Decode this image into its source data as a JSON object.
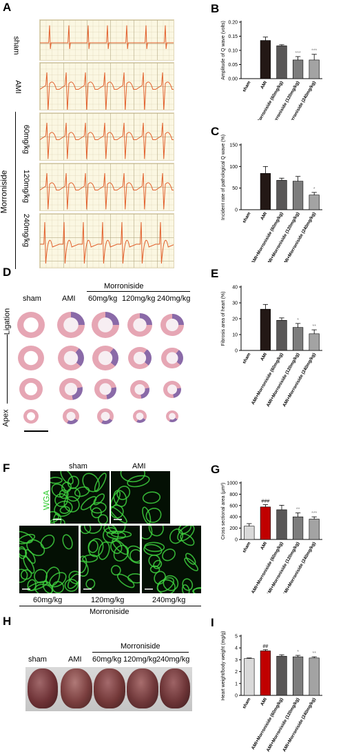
{
  "panels": {
    "A": {
      "letter": "A",
      "group_label": "Morroniside",
      "rows": [
        "sham",
        "AMI",
        "60mg/kg",
        "120mg/kg",
        "240mg/kg"
      ]
    },
    "D": {
      "letter": "D",
      "col_labels": [
        "sham",
        "AMI",
        "60mg/kg",
        "120mg/kg",
        "240mg/kg"
      ],
      "group_label": "Morroniside",
      "side_top": "Ligation",
      "side_bottom": "Apex"
    },
    "F": {
      "letter": "F",
      "top_labels": [
        "sham",
        "AMI"
      ],
      "stain": "WGA",
      "bottom_labels": [
        "60mg/kg",
        "120mg/kg",
        "240mg/kg"
      ],
      "group_label": "Morroniside"
    },
    "H": {
      "letter": "H",
      "labels": [
        "sham",
        "AMI",
        "60mg/kg",
        "120mg/kg",
        "240mg/kg"
      ],
      "group_label": "Morroniside"
    }
  },
  "colors": {
    "ecg": "#e2602c",
    "ecg_grid": "#d8cfa8",
    "stain_green": "#3ecf3e",
    "he_pink": "#e6a6b4",
    "he_purple": "#8a6aa8",
    "heart": "#6b3030"
  },
  "chart_data": [
    {
      "id": "B",
      "letter": "B",
      "type": "bar",
      "categories": [
        "sham",
        "AMI",
        "AMI+Morroniside (60mg/kg)",
        "AMI+Morroniside (120mg/kg)",
        "AMI+Morroniside (240mg/kg)"
      ],
      "values": [
        0,
        0.135,
        0.116,
        0.066,
        0.066
      ],
      "errors": [
        0,
        0.012,
        0.004,
        0.012,
        0.02
      ],
      "colors": [
        "#ffffff",
        "#231815",
        "#595757",
        "#7d7d7d",
        "#a3a3a3"
      ],
      "sig": [
        "",
        "",
        "",
        "***",
        "***"
      ],
      "ylabel": "Amplitude of Q wave (volts)",
      "ylim": [
        0,
        0.2
      ],
      "yticks": [
        "0.00",
        "0.05",
        "0.10",
        "0.15",
        "0.20"
      ],
      "ytick_values": [
        0,
        0.05,
        0.1,
        0.15,
        0.2
      ]
    },
    {
      "id": "C",
      "letter": "C",
      "type": "bar",
      "categories": [
        "sham",
        "AMI",
        "AMI+Morroniside (60mg/kg)",
        "AMI+Morroniside (120mg/kg)",
        "AMI+Morroniside (240mg/kg)"
      ],
      "values": [
        0,
        84,
        68,
        66,
        34
      ],
      "errors": [
        0,
        16,
        5,
        11,
        6
      ],
      "colors": [
        "#ffffff",
        "#231815",
        "#595757",
        "#7d7d7d",
        "#a3a3a3"
      ],
      "sig": [
        "",
        "",
        "",
        "",
        "*"
      ],
      "ylabel": "Incident rate of pathological Q wave (%)",
      "ylim": [
        0,
        150
      ],
      "yticks": [
        "0",
        "50",
        "100",
        "150"
      ],
      "ytick_values": [
        0,
        50,
        100,
        150
      ]
    },
    {
      "id": "E",
      "letter": "E",
      "type": "bar",
      "categories": [
        "sham",
        "AMI",
        "AMI+Morroniside (60mg/kg)",
        "AMI+Morroniside (120mg/kg)",
        "AMI+Morroniside (240mg/kg)"
      ],
      "values": [
        0,
        26,
        19,
        14.5,
        10.5
      ],
      "errors": [
        0,
        3,
        1.5,
        2.5,
        2.5
      ],
      "colors": [
        "#ffffff",
        "#231815",
        "#595757",
        "#7d7d7d",
        "#a3a3a3"
      ],
      "sig": [
        "",
        "",
        "",
        "*",
        "**"
      ],
      "ylabel": "Fibrosis area of heart (%)",
      "ylim": [
        0,
        40
      ],
      "yticks": [
        "0",
        "10",
        "20",
        "30",
        "40"
      ],
      "ytick_values": [
        0,
        10,
        20,
        30,
        40
      ]
    },
    {
      "id": "G",
      "letter": "G",
      "type": "bar",
      "categories": [
        "sham",
        "AMI",
        "AMI+Morroniside (60mg/kg)",
        "AMI+Morroniside (120mg/kg)",
        "AMI+Morroniside (240mg/kg)"
      ],
      "values": [
        235,
        575,
        525,
        400,
        360
      ],
      "errors": [
        45,
        40,
        80,
        70,
        40
      ],
      "colors": [
        "#d9d9d9",
        "#c00000",
        "#595757",
        "#7d7d7d",
        "#a3a3a3"
      ],
      "sig": [
        "",
        "###",
        "",
        "**",
        "***"
      ],
      "ylabel": "Cross sectional area (μm²)",
      "ylim": [
        0,
        1000
      ],
      "yticks": [
        "0",
        "200",
        "400",
        "600",
        "800",
        "1000"
      ],
      "ytick_values": [
        0,
        200,
        400,
        600,
        800,
        1000
      ]
    },
    {
      "id": "I",
      "letter": "I",
      "type": "bar",
      "categories": [
        "sham",
        "AMI",
        "AMI+Morroniside (60mg/kg)",
        "AMI+Morroniside (120mg/kg)",
        "AMI+Morroniside (240mg/kg)"
      ],
      "values": [
        3.1,
        3.75,
        3.3,
        3.25,
        3.15
      ],
      "errors": [
        0.05,
        0.1,
        0.12,
        0.12,
        0.1
      ],
      "colors": [
        "#d9d9d9",
        "#c00000",
        "#595757",
        "#7d7d7d",
        "#a3a3a3"
      ],
      "sig": [
        "",
        "##",
        "",
        "*",
        "**"
      ],
      "ylabel": "Heart weight/body weight (mg/g)",
      "ylim": [
        0,
        5
      ],
      "yticks": [
        "0",
        "1",
        "2",
        "3",
        "4",
        "5"
      ],
      "ytick_values": [
        0,
        1,
        2,
        3,
        4,
        5
      ]
    }
  ]
}
